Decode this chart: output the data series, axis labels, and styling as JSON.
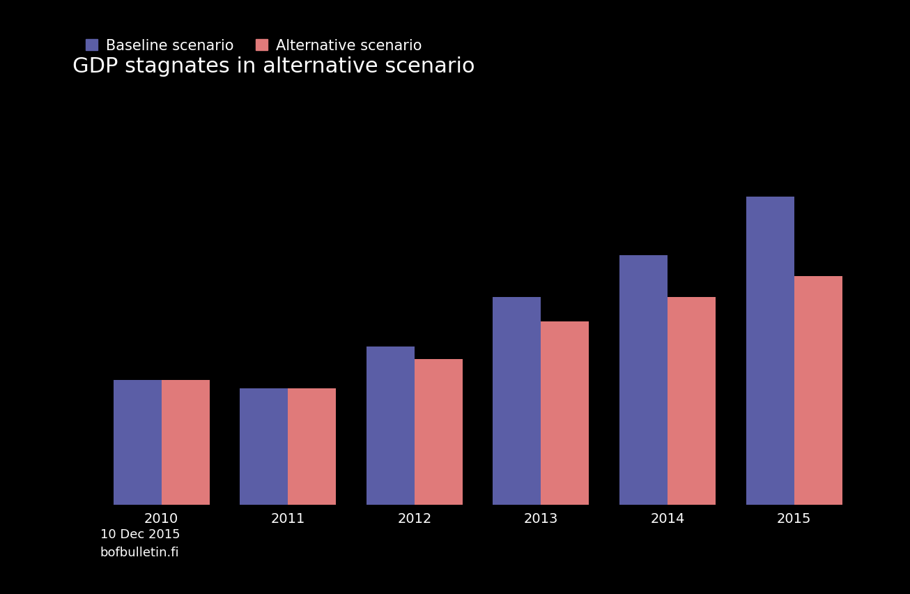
{
  "title": "GDP stagnates in alternative scenario",
  "categories": [
    "2010",
    "2011",
    "2012",
    "2013",
    "2014",
    "2015"
  ],
  "baseline_values": [
    1.5,
    1.4,
    1.9,
    2.5,
    3.0,
    3.7
  ],
  "alternative_values": [
    1.5,
    1.4,
    1.75,
    2.2,
    2.5,
    2.75
  ],
  "baseline_label": "Baseline scenario",
  "alternative_label": "Alternative scenario",
  "bar_color_baseline": "#5b5ea6",
  "bar_color_alternative": "#e07a7a",
  "background_color": "#000000",
  "text_color": "#ffffff",
  "ylim": [
    0,
    4.5
  ],
  "bar_width": 0.38,
  "footnote_date": "10 Dec 2015",
  "footnote_url": "bofbulletin.fi",
  "title_fontsize": 22,
  "legend_fontsize": 15,
  "tick_fontsize": 14,
  "footnote_fontsize": 13
}
